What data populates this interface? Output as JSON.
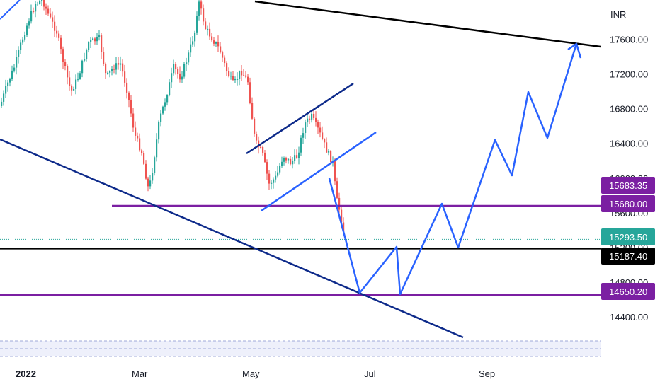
{
  "chart_data": {
    "type": "candlestick",
    "currency": "INR",
    "y_axis": {
      "ticks": [
        "17600.00",
        "17200.00",
        "16800.00",
        "16400.00",
        "16000.00",
        "15600.00",
        "15200.00",
        "14800.00",
        "14400.00"
      ],
      "range": [
        14150,
        17950
      ]
    },
    "x_axis": {
      "ticks": [
        {
          "label": "2022",
          "bold": true
        },
        {
          "label": "Mar",
          "bold": false
        },
        {
          "label": "May",
          "bold": false
        },
        {
          "label": "Jul",
          "bold": false
        },
        {
          "label": "Sep",
          "bold": false
        }
      ]
    },
    "price_badges": [
      {
        "label": "15683.35",
        "value": 15683.35,
        "color": "#7b1fa2",
        "text_color": "#ffffff"
      },
      {
        "label": "15680.00",
        "value": 15680.0,
        "color": "#7b1fa2",
        "text_color": "#ffffff"
      },
      {
        "label": "15293.50",
        "value": 15293.5,
        "color": "#26a69a",
        "text_color": "#ffffff"
      },
      {
        "label": "15187.40",
        "value": 15187.4,
        "color": "#000000",
        "text_color": "#ffffff"
      },
      {
        "label": "14650.20",
        "value": 14650.2,
        "color": "#7b1fa2",
        "text_color": "#ffffff"
      }
    ],
    "horizontal_levels": [
      {
        "value": 15680.0,
        "color": "#7b1fa2"
      },
      {
        "value": 15187.4,
        "color": "#000000"
      },
      {
        "value": 14650.2,
        "color": "#7b1fa2"
      }
    ],
    "last_price": 15293.5,
    "candle_colors": {
      "up": "#26a69a",
      "down": "#ef5350"
    },
    "drawing_colors": {
      "trend_dark": "#0d2a8a",
      "trend_black": "#000000",
      "projection": "#2962ff",
      "level": "#7b1fa2"
    }
  }
}
